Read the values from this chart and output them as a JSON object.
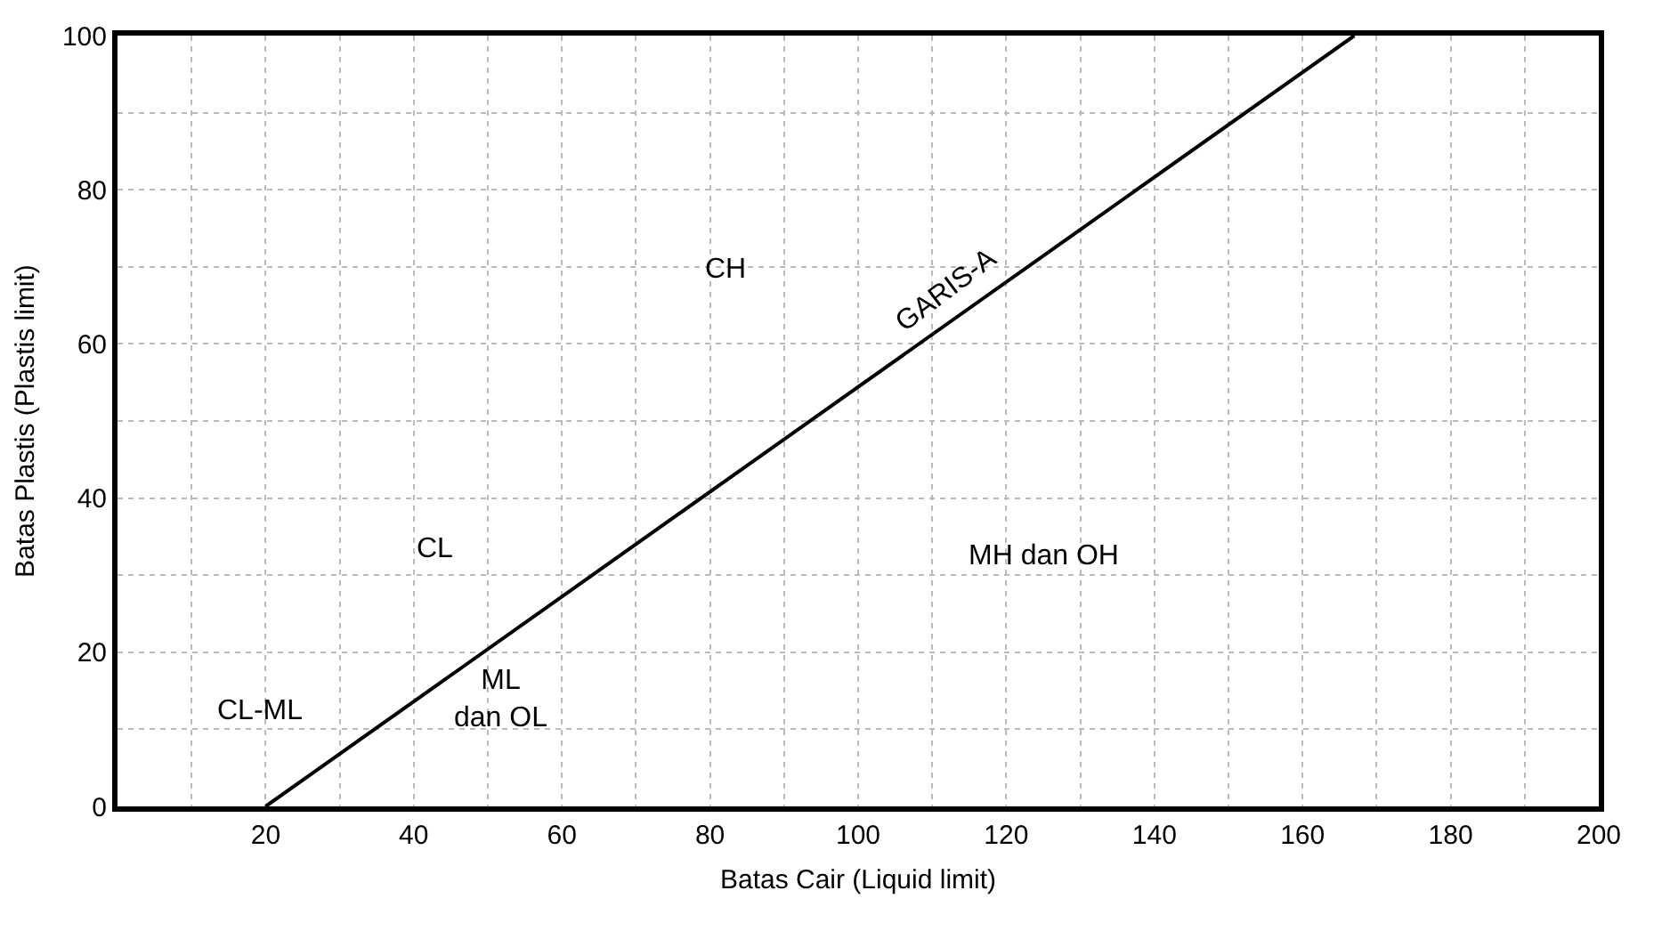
{
  "chart_data": {
    "type": "line",
    "xlabel": "Batas Cair (Liquid limit)",
    "ylabel": "Batas Plastis (Plastis limit)",
    "xlim": [
      0,
      200
    ],
    "ylim": [
      0,
      100
    ],
    "xticks": [
      {
        "value": 10,
        "label": null
      },
      20,
      {
        "value": 30,
        "label": null
      },
      40,
      {
        "value": 50,
        "label": null
      },
      60,
      {
        "value": 70,
        "label": null
      },
      80,
      {
        "value": 90,
        "label": null
      },
      100,
      {
        "value": 110,
        "label": null
      },
      120,
      {
        "value": 130,
        "label": null
      },
      140,
      {
        "value": 150,
        "label": null
      },
      160,
      {
        "value": 170,
        "label": null
      },
      180,
      {
        "value": 190,
        "label": null
      },
      200
    ],
    "yticks": [
      0,
      {
        "value": 10,
        "label": null
      },
      20,
      {
        "value": 30,
        "label": null
      },
      40,
      {
        "value": 50,
        "label": null
      },
      60,
      {
        "value": 70,
        "label": null
      },
      80,
      {
        "value": 90,
        "label": null
      },
      100
    ],
    "grid": true,
    "marker": "none",
    "line_style": "solid",
    "series": [
      {
        "name": "GARIS-A",
        "x": [
          20,
          167
        ],
        "values": [
          0,
          100
        ],
        "color": "#000000"
      }
    ],
    "annotations": [
      "CH",
      "CL",
      "CL-ML",
      "ML\ndan OL",
      "MH dan OH"
    ]
  }
}
